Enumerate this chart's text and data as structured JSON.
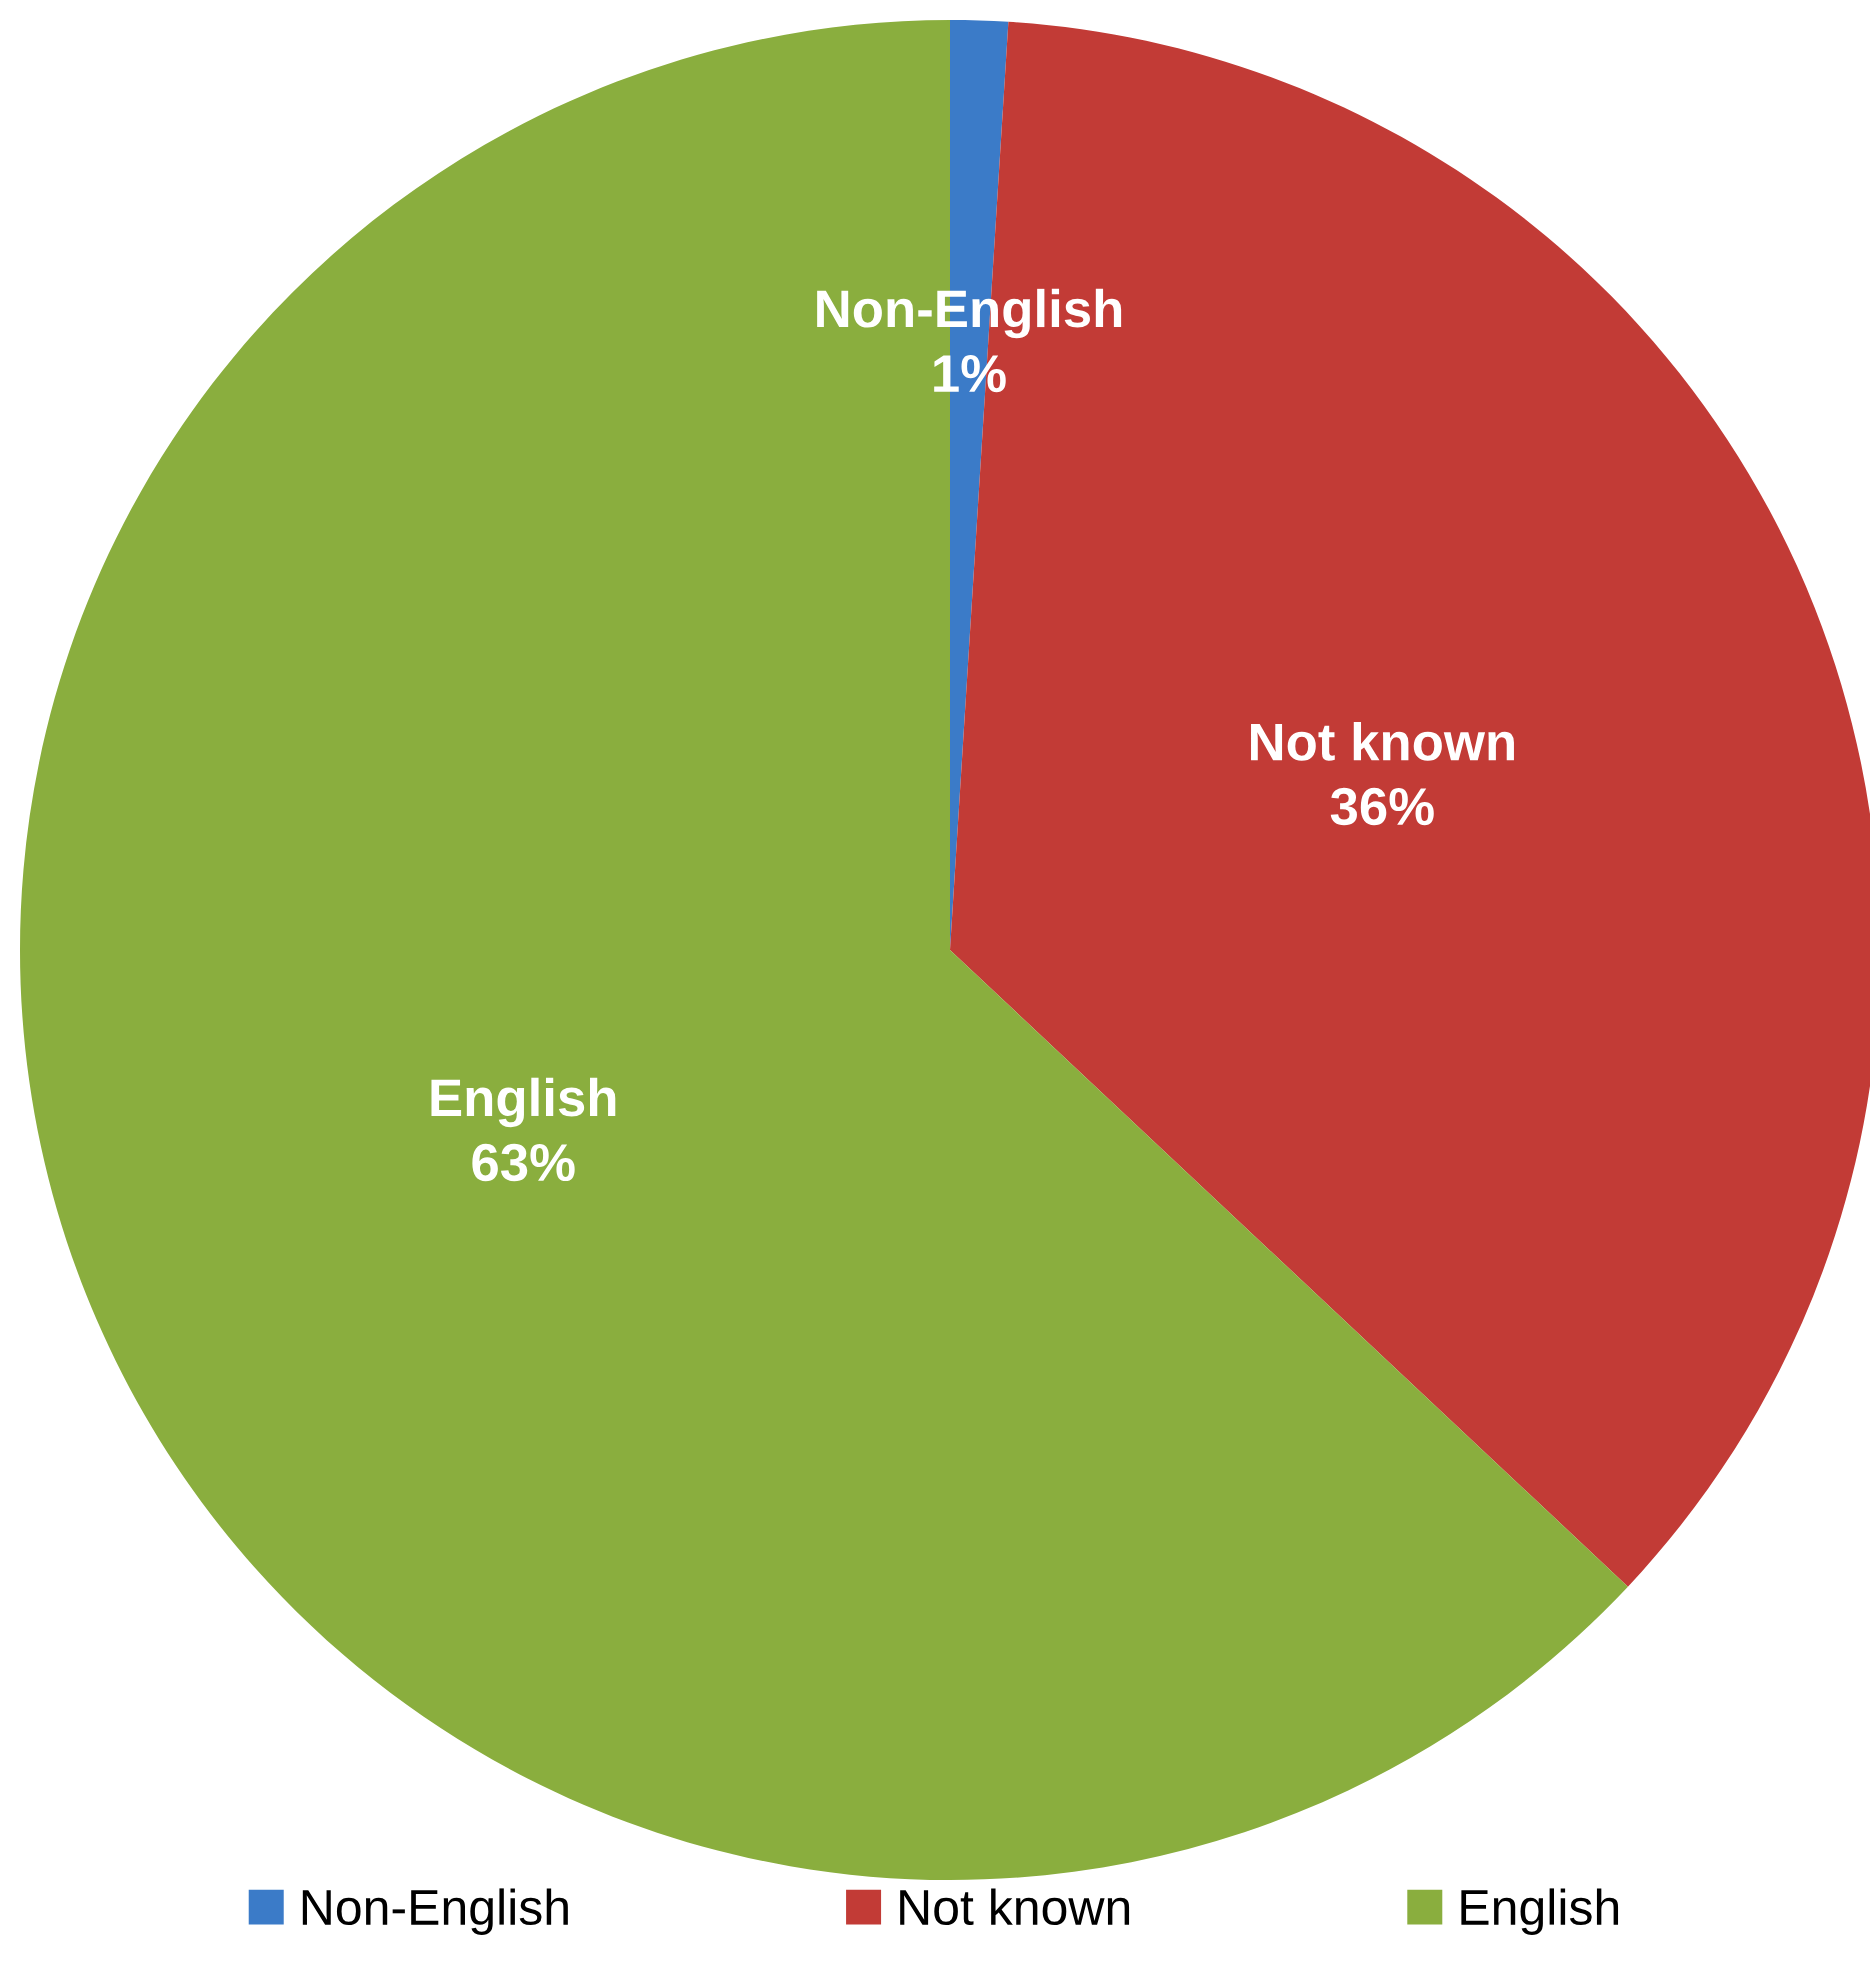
{
  "chart_data": {
    "type": "pie",
    "categories": [
      "Non-English",
      "Not known",
      "English"
    ],
    "values": [
      1,
      36,
      63
    ],
    "colors": [
      "#3b7bc8",
      "#c23b36",
      "#8aae3e"
    ],
    "value_labels": [
      "1%",
      "36%",
      "63%"
    ],
    "legend": "bottom"
  }
}
